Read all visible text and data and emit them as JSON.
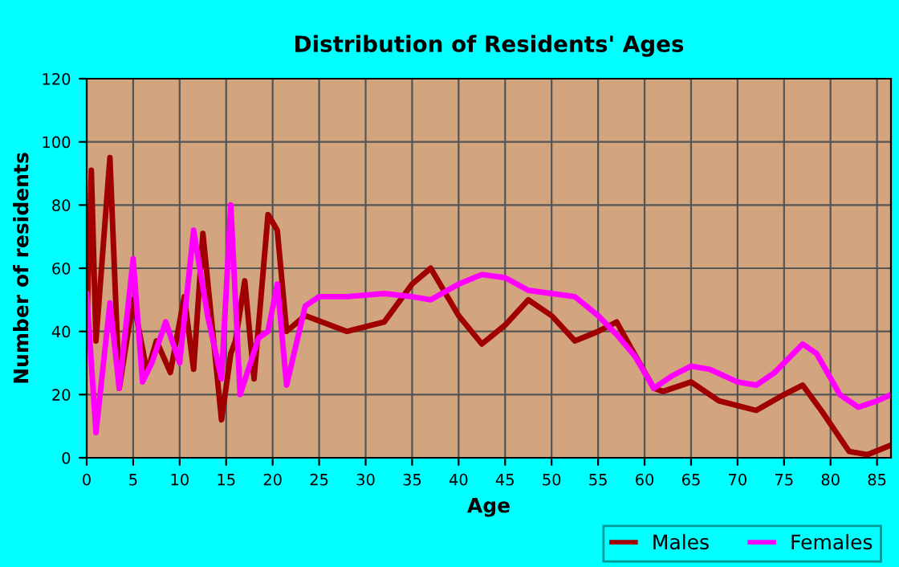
{
  "chart_data": {
    "type": "line",
    "title": "Distribution of Residents' Ages",
    "xlabel": "Age",
    "ylabel": "Number of residents",
    "xlim": [
      0,
      86.5
    ],
    "ylim": [
      0,
      120
    ],
    "xticks": [
      0,
      5,
      10,
      15,
      20,
      25,
      30,
      35,
      40,
      45,
      50,
      55,
      60,
      65,
      70,
      75,
      80,
      85
    ],
    "yticks": [
      0,
      20,
      40,
      60,
      80,
      100,
      120
    ],
    "grid": true,
    "legend": "bottom right",
    "marker": "none",
    "line_style": "solid",
    "series": [
      {
        "name": "Males",
        "color": "#a00000",
        "x": [
          0,
          0.5,
          1,
          2.5,
          3.5,
          5,
          6.5,
          7.5,
          9,
          10.5,
          11.5,
          12.5,
          14.5,
          15.5,
          16,
          17,
          18,
          19.5,
          20.5,
          21.5,
          23.5,
          28,
          32,
          35,
          37,
          40,
          42.5,
          45,
          47.5,
          50,
          52.5,
          55,
          57,
          58.5,
          61,
          62,
          65,
          68,
          72,
          75,
          77,
          79,
          82,
          84,
          86.5
        ],
        "values": [
          40,
          91,
          37,
          95,
          22,
          50,
          27,
          37,
          27,
          51,
          28,
          71,
          12,
          33,
          37,
          56,
          25,
          77,
          72,
          40,
          45,
          40,
          43,
          55,
          60,
          45,
          36,
          42,
          50,
          45,
          37,
          40,
          43,
          35,
          22,
          21,
          24,
          18,
          15,
          20,
          23,
          15,
          2,
          1,
          4
        ]
      },
      {
        "name": "Females",
        "color": "#ff00ff",
        "x": [
          0,
          1,
          2.5,
          3.5,
          5,
          6,
          7,
          8.5,
          10,
          11.5,
          13,
          14.5,
          15.5,
          16.5,
          18.5,
          19.5,
          20.5,
          21.5,
          23.5,
          25,
          28,
          32,
          35,
          37,
          40,
          42.5,
          45,
          47.5,
          50,
          52.5,
          55,
          57,
          59,
          61,
          63,
          65,
          67,
          70,
          72,
          74,
          77,
          78.5,
          81,
          83,
          85,
          86.5
        ],
        "values": [
          52,
          8,
          49,
          22,
          63,
          24,
          30,
          43,
          30,
          72,
          45,
          25,
          80,
          20,
          38,
          40,
          55,
          23,
          48,
          51,
          51,
          52,
          51,
          50,
          55,
          58,
          57,
          53,
          52,
          51,
          45,
          39,
          32,
          22,
          26,
          29,
          28,
          24,
          23,
          27,
          36,
          33,
          20,
          16,
          18,
          20
        ]
      }
    ]
  }
}
